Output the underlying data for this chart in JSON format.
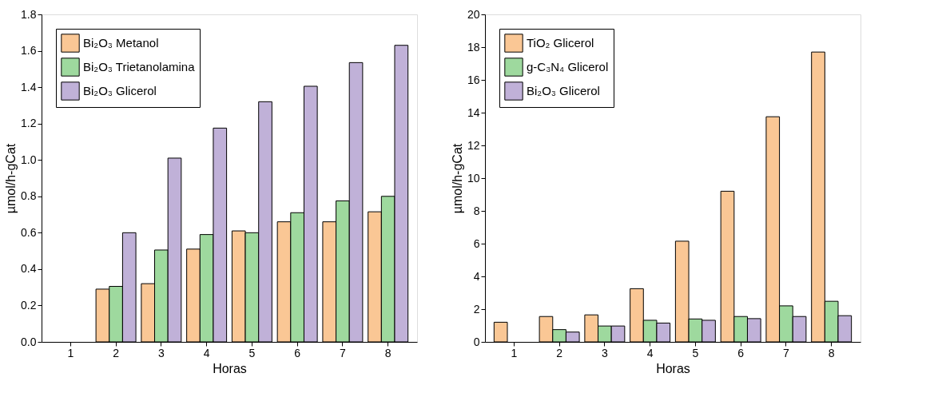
{
  "chart_data": [
    {
      "type": "bar",
      "xlabel": "Horas",
      "ylabel": "µmol/h-gCat",
      "categories": [
        "1",
        "2",
        "3",
        "4",
        "5",
        "6",
        "7",
        "8"
      ],
      "ylim": [
        0,
        1.8
      ],
      "yticks": [
        {
          "value": 0,
          "label": "0.0"
        },
        0.2,
        0.4,
        0.6,
        0.8,
        {
          "value": 1,
          "label": "1.0"
        },
        1.2,
        1.4,
        1.6,
        1.8
      ],
      "legend": "top left",
      "grid": false,
      "series": [
        {
          "name": "Bi₂O₃ Metanol",
          "color": "#fac795",
          "values": [
            null,
            0.29,
            0.32,
            0.51,
            0.61,
            0.66,
            0.66,
            0.715
          ]
        },
        {
          "name": "Bi₂O₃ Trietanolamina",
          "color": "#9ed99e",
          "values": [
            null,
            0.305,
            0.505,
            0.59,
            0.6,
            0.71,
            0.775,
            0.8
          ]
        },
        {
          "name": "Bi₂O₃ Glicerol",
          "color": "#c0b1d8",
          "values": [
            null,
            0.6,
            1.01,
            1.175,
            1.32,
            1.405,
            1.535,
            1.63
          ]
        }
      ]
    },
    {
      "type": "bar",
      "xlabel": "Horas",
      "ylabel": "µmol/h-gCat",
      "categories": [
        "1",
        "2",
        "3",
        "4",
        "5",
        "6",
        "7",
        "8"
      ],
      "ylim": [
        0,
        20
      ],
      "yticks": [
        0,
        2,
        4,
        6,
        8,
        10,
        12,
        14,
        16,
        18,
        20
      ],
      "legend": "top left",
      "grid": false,
      "series": [
        {
          "name": "TiO₂ Glicerol",
          "color": "#fac795",
          "values": [
            1.2,
            1.55,
            1.65,
            3.25,
            6.15,
            9.2,
            13.75,
            17.7
          ]
        },
        {
          "name": "g-C₃N₄ Glicerol",
          "color": "#9ed99e",
          "values": [
            null,
            0.75,
            0.97,
            1.32,
            1.4,
            1.55,
            2.2,
            2.48
          ]
        },
        {
          "name": "Bi₂O₃ Glicerol",
          "color": "#c0b1d8",
          "values": [
            null,
            0.6,
            0.97,
            1.15,
            1.32,
            1.42,
            1.55,
            1.6
          ]
        }
      ]
    }
  ]
}
